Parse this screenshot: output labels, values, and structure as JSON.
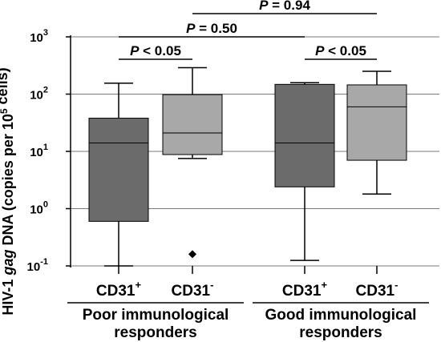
{
  "chart_data": {
    "type": "box",
    "y_scale": "log",
    "ylim": [
      0.1,
      1000
    ],
    "ylabel": {
      "parts": [
        {
          "text": "HIV-1 ",
          "style": "normal"
        },
        {
          "text": "gag",
          "style": "italic"
        },
        {
          "text": " DNA (copies per 10",
          "style": "normal"
        },
        {
          "text": "5",
          "style": "sup"
        },
        {
          "text": " cells)",
          "style": "normal"
        }
      ]
    },
    "yticks": [
      {
        "value": 0.1,
        "base": "10",
        "exp": "-1"
      },
      {
        "value": 1,
        "base": "10",
        "exp": "0"
      },
      {
        "value": 10,
        "base": "10",
        "exp": "1"
      },
      {
        "value": 100,
        "base": "10",
        "exp": "2"
      },
      {
        "value": 1000,
        "base": "10",
        "exp": "3"
      }
    ],
    "grid": "horizontal",
    "boxes": [
      {
        "label": "CD31",
        "sup": "+",
        "group": 0,
        "color": "#6b6b6b",
        "whisker_low": 0.1,
        "q1": 0.6,
        "median": 14,
        "q3": 38,
        "whisker_high": 155,
        "outliers": []
      },
      {
        "label": "CD31",
        "sup": "-",
        "group": 0,
        "color": "#a8a8a8",
        "whisker_low": 7.5,
        "q1": 8.8,
        "median": 21,
        "q3": 98,
        "whisker_high": 290,
        "outliers": [
          0.16
        ]
      },
      {
        "label": "CD31",
        "sup": "+",
        "group": 1,
        "color": "#6b6b6b",
        "whisker_low": 0.125,
        "q1": 2.4,
        "median": 14,
        "q3": 148,
        "whisker_high": 158,
        "outliers": []
      },
      {
        "label": "CD31",
        "sup": "-",
        "group": 1,
        "color": "#a8a8a8",
        "whisker_low": 1.8,
        "q1": 7.0,
        "median": 60,
        "q3": 145,
        "whisker_high": 250,
        "outliers": []
      }
    ],
    "groups": [
      {
        "line1": "Poor immunological",
        "line2": "responders"
      },
      {
        "line1": "Good immunological",
        "line2": "responders"
      }
    ],
    "significance": [
      {
        "from_box": 0,
        "to_box": 1,
        "p_italic": "P",
        "p_text": " < 0.05"
      },
      {
        "from_box": 2,
        "to_box": 3,
        "p_italic": "P",
        "p_text": " < 0.05"
      },
      {
        "from_box": 0,
        "to_box": 2,
        "p_italic": "P",
        "p_text": " = 0.50"
      },
      {
        "from_box": 1,
        "to_box": 3,
        "p_italic": "P",
        "p_text": " = 0.94"
      }
    ]
  }
}
